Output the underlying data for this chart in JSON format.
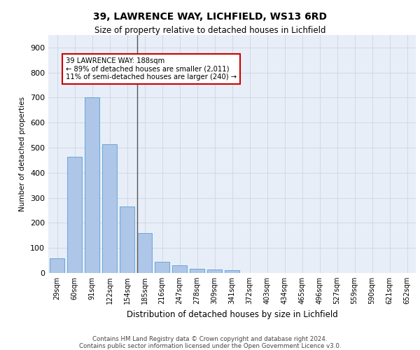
{
  "title1": "39, LAWRENCE WAY, LICHFIELD, WS13 6RD",
  "title2": "Size of property relative to detached houses in Lichfield",
  "xlabel": "Distribution of detached houses by size in Lichfield",
  "ylabel": "Number of detached properties",
  "footnote1": "Contains HM Land Registry data © Crown copyright and database right 2024.",
  "footnote2": "Contains public sector information licensed under the Open Government Licence v3.0.",
  "categories": [
    "29sqm",
    "60sqm",
    "91sqm",
    "122sqm",
    "154sqm",
    "185sqm",
    "216sqm",
    "247sqm",
    "278sqm",
    "309sqm",
    "341sqm",
    "372sqm",
    "403sqm",
    "434sqm",
    "465sqm",
    "496sqm",
    "527sqm",
    "559sqm",
    "590sqm",
    "621sqm",
    "652sqm"
  ],
  "bar_values": [
    60,
    463,
    700,
    515,
    265,
    160,
    45,
    30,
    18,
    15,
    10,
    0,
    0,
    0,
    0,
    0,
    0,
    0,
    0,
    0,
    0
  ],
  "bar_color": "#aec6e8",
  "bar_edge_color": "#5a9fd4",
  "highlight_index": 5,
  "highlight_line_color": "#555555",
  "ylim": [
    0,
    950
  ],
  "yticks": [
    0,
    100,
    200,
    300,
    400,
    500,
    600,
    700,
    800,
    900
  ],
  "annotation_line1": "39 LAWRENCE WAY: 188sqm",
  "annotation_line2": "← 89% of detached houses are smaller (2,011)",
  "annotation_line3": "11% of semi-detached houses are larger (240) →",
  "annotation_box_color": "#ffffff",
  "annotation_box_edge": "#cc0000",
  "grid_color": "#d0d8e8",
  "bg_color": "#e8eef7"
}
